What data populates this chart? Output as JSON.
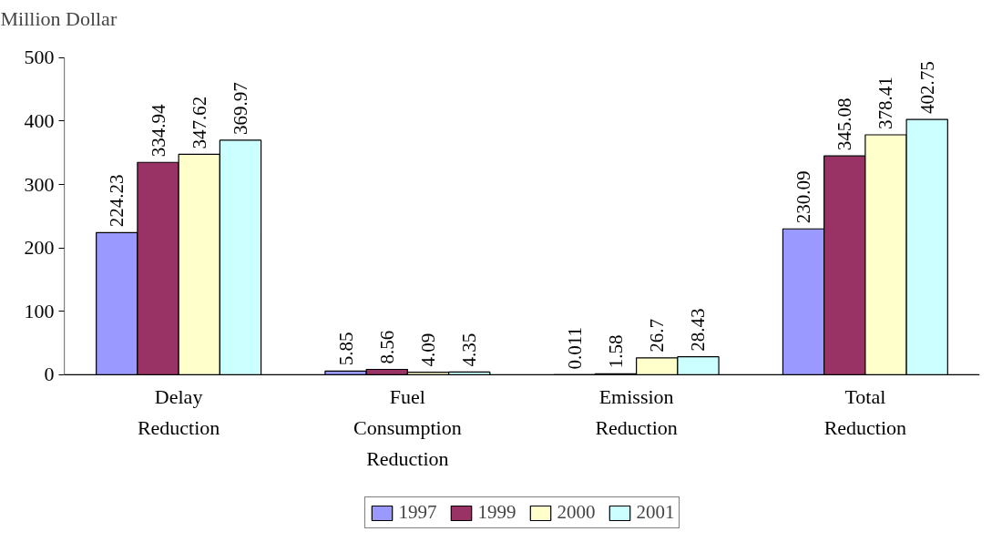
{
  "chart_data": {
    "type": "bar",
    "ylabel": "Million Dollar",
    "categories": [
      "Delay\nReduction",
      "Fuel\nConsumption\nReduction",
      "Emission\nReduction",
      "Total\nReduction"
    ],
    "series": [
      {
        "name": "1997",
        "color": "#9999ff",
        "values": [
          224.23,
          5.85,
          0.011,
          230.09
        ]
      },
      {
        "name": "1999",
        "color": "#993366",
        "values": [
          334.94,
          8.56,
          1.58,
          345.08
        ]
      },
      {
        "name": "2000",
        "color": "#ffffcc",
        "values": [
          347.62,
          4.09,
          26.7,
          378.41
        ]
      },
      {
        "name": "2001",
        "color": "#ccffff",
        "values": [
          369.97,
          4.35,
          28.43,
          402.75
        ]
      }
    ],
    "ylim": [
      0,
      500
    ],
    "yticks": [
      0,
      100,
      200,
      300,
      400,
      500
    ],
    "grid": false,
    "legend": "bottom",
    "data_labels": true
  }
}
